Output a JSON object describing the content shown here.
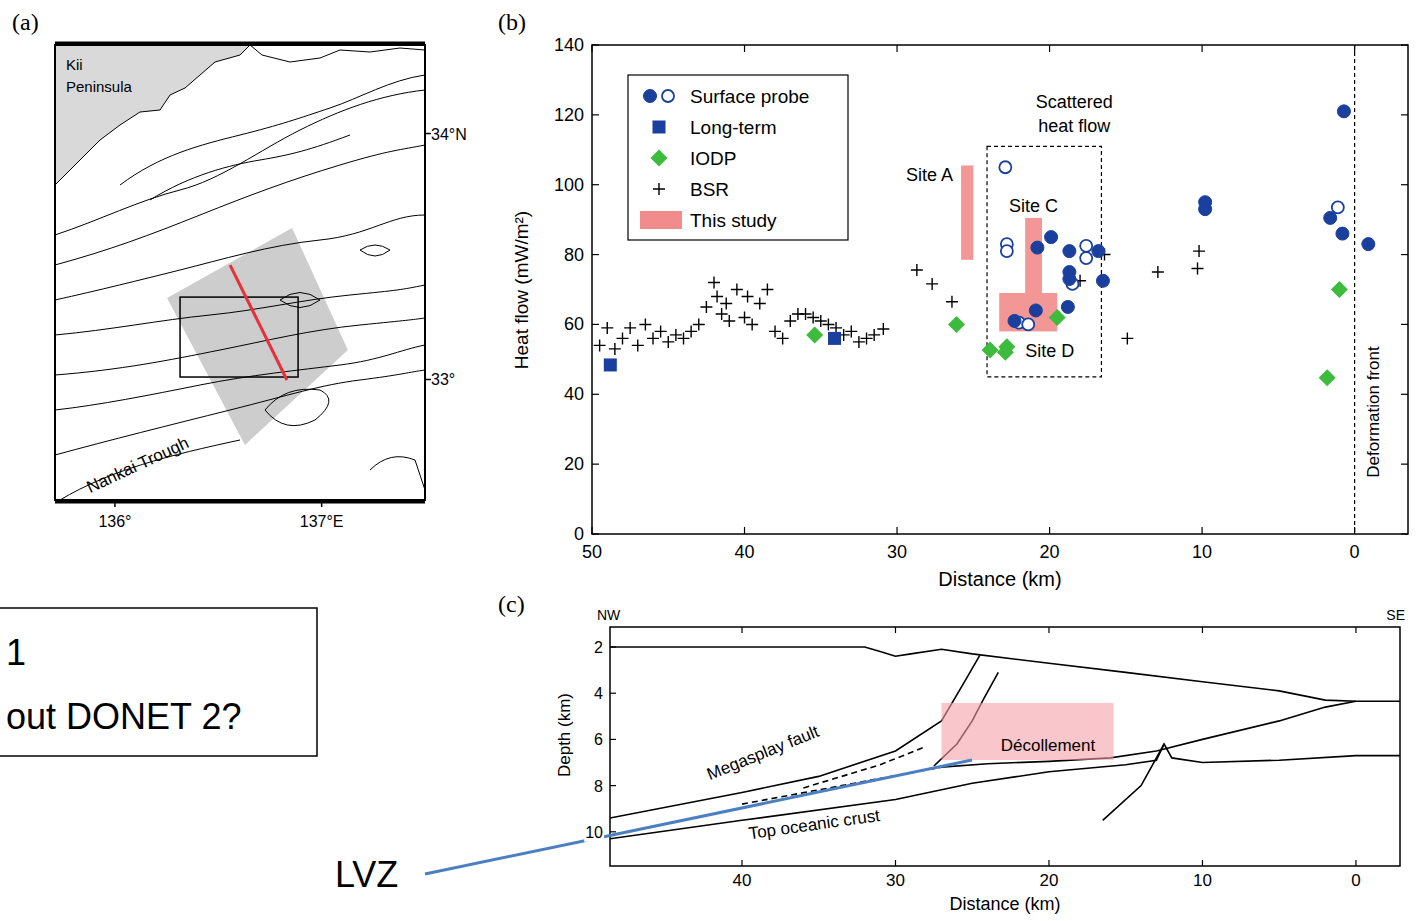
{
  "chart_data": [
    {
      "type": "map",
      "panel_label": "(a)",
      "xlim": [
        135.71,
        137.5
      ],
      "ylim": [
        32.51,
        34.36
      ],
      "xticks": [
        {
          "value": 136,
          "label": "136°"
        },
        {
          "value": 137,
          "label": "137°E"
        }
      ],
      "yticks": [
        {
          "value": 34,
          "label": "34°N"
        },
        {
          "value": 33,
          "label": "33°"
        }
      ],
      "place_labels": [
        "Kii Peninsula",
        "Nankai Trough"
      ],
      "study_area": {
        "x": [
          136.252,
          136.857,
          137.127,
          136.629
        ],
        "y": [
          33.331,
          33.616,
          33.12,
          32.734
        ],
        "color": "#c8c8c8"
      },
      "box": {
        "x": [
          136.315,
          136.886
        ],
        "y": [
          33.01,
          33.335
        ],
        "color": "#000000"
      },
      "profile": {
        "x": [
          136.557,
          136.832
        ],
        "y": [
          33.465,
          32.998
        ],
        "color": "#e8303a"
      }
    },
    {
      "type": "scatter",
      "panel_label": "(b)",
      "xlabel": "Distance (km)",
      "ylabel": "Heat flow (mW/m²)",
      "xlim": [
        50,
        -3.5
      ],
      "ylim": [
        0,
        140
      ],
      "xticks": [
        50,
        40,
        30,
        20,
        10,
        0
      ],
      "yticks": [
        0,
        20,
        40,
        60,
        80,
        100,
        120,
        140
      ],
      "legend": "upper left",
      "series": [
        {
          "name": "Surface probe",
          "marker": "circle",
          "color": "#1b3f9c",
          "x": [
            0.7,
            1.6,
            0.8,
            -0.9,
            9.8,
            9.8,
            16.5,
            16.8,
            18.7,
            18.7,
            18.7,
            18.8,
            19.9,
            20.8,
            20.9,
            22.3
          ],
          "values": [
            121,
            90.5,
            86,
            83,
            95,
            93,
            72.5,
            81,
            81,
            75,
            73,
            65,
            85,
            82,
            64,
            61
          ]
        },
        {
          "marker": "open_circle",
          "color": "#1b3f9c",
          "x": [
            1.1,
            22.9,
            22.8,
            22.8,
            17.6,
            17.6,
            18.5,
            22,
            21.4
          ],
          "values": [
            93.5,
            105,
            83,
            81,
            82.5,
            79,
            71.6,
            60.5,
            60
          ]
        },
        {
          "name": "Long-term",
          "marker": "square",
          "color": "#1b3f9c",
          "x": [
            48.8,
            34.1
          ],
          "values": [
            48.4,
            56
          ]
        },
        {
          "name": "IODP",
          "marker": "diamond",
          "color": "#3dbb3d",
          "x": [
            35.4,
            26.1,
            23.9,
            22.9,
            22.8,
            19.5,
            1,
            1.8
          ],
          "values": [
            57,
            60,
            52.7,
            52,
            53.6,
            62,
            70,
            44.7
          ]
        },
        {
          "name": "BSR",
          "marker": "plus",
          "color": "#000000",
          "x": [
            49.5,
            49,
            48.5,
            48,
            47.5,
            47,
            46.5,
            46,
            45.5,
            45,
            44.5,
            44,
            43.5,
            43,
            42.5,
            42,
            41.8,
            41.5,
            41.2,
            41,
            40.5,
            40,
            39.8,
            39.5,
            39,
            38.5,
            38,
            37.5,
            37,
            36.5,
            36,
            35.5,
            35,
            34.5,
            34,
            33.5,
            33,
            32.5,
            32,
            31.5,
            30.9,
            28.7,
            27.7,
            26.4,
            18,
            16.4,
            14.9,
            12.9,
            10.3,
            10.2
          ],
          "values": [
            54,
            59,
            53,
            56,
            59,
            54,
            60,
            56,
            58,
            55,
            57,
            56,
            58,
            60,
            65,
            72,
            68,
            63,
            66,
            61,
            70,
            62,
            68,
            60,
            66,
            70,
            58,
            56,
            61,
            63,
            63,
            62,
            61,
            60,
            59,
            57,
            58,
            55,
            56,
            57,
            58.7,
            75.6,
            71.6,
            66.5,
            72.5,
            80,
            56,
            75,
            76,
            81
          ]
        },
        {
          "name": "This study",
          "type": "rect",
          "color": "#f28b8b",
          "x_ranges": [
            [
              25.8,
              25.0
            ],
            [
              21.6,
              20.5
            ],
            [
              23.3,
              19.5
            ]
          ],
          "y_ranges": [
            [
              78.5,
              105.5
            ],
            [
              69,
              90.5
            ],
            [
              58,
              69
            ]
          ]
        }
      ],
      "site_labels": [
        "Site A",
        "Site C",
        "Site D"
      ],
      "annotations": [
        {
          "text": "Scattered heat flow",
          "x": [
            24.1,
            16.6
          ],
          "y": [
            45,
            111
          ],
          "line_style": "dashed"
        },
        {
          "text": "Deformation front",
          "x": 0,
          "line_style": "dashed"
        }
      ]
    },
    {
      "type": "line",
      "panel_label": "(c)",
      "xlabel": "Distance (km)",
      "ylabel": "Depth (km)",
      "xlim": [
        48.6,
        -2.87
      ],
      "ylim": [
        11.48,
        1.134
      ],
      "xticks": [
        40,
        30,
        20,
        10,
        0
      ],
      "yticks": [
        2,
        4,
        6,
        8,
        10
      ],
      "corner_labels": [
        "NW",
        "SE"
      ],
      "labels": [
        "Megasplay fault",
        "Décollement",
        "Top oceanic crust"
      ],
      "highlight": {
        "x": [
          27,
          15.8
        ],
        "y": [
          4.42,
          6.89
        ],
        "color": "#f5a0a8"
      },
      "series": [
        {
          "color": "#000000",
          "line_style": "solid",
          "x": [
            48.6,
            32,
            31,
            30,
            29,
            27,
            25,
            20,
            15,
            10,
            5,
            2,
            0,
            -2.87
          ],
          "values": [
            2.0,
            2.0,
            2.2,
            2.4,
            2.3,
            2.1,
            2.3,
            2.7,
            3.1,
            3.5,
            3.9,
            4.3,
            4.35,
            4.35
          ]
        },
        {
          "color": "#000000",
          "line_style": "solid",
          "x": [
            48.6,
            40,
            35,
            30,
            27,
            25.5,
            24.5
          ],
          "values": [
            9.4,
            8.3,
            7.6,
            6.5,
            5.2,
            3.5,
            2.35
          ]
        },
        {
          "color": "#000000",
          "line_style": "solid",
          "x": [
            27.5,
            26,
            25,
            24.3,
            23.3
          ],
          "values": [
            7.15,
            6.2,
            5.2,
            4.3,
            3.1
          ]
        },
        {
          "color": "#000000",
          "line_style": "dashed",
          "x": [
            36,
            31,
            28
          ],
          "values": [
            8.1,
            7.1,
            6.3
          ]
        },
        {
          "color": "#000000",
          "line_style": "dashed",
          "x": [
            40,
            27
          ],
          "values": [
            8.8,
            7.2
          ]
        },
        {
          "color": "#000000",
          "line_style": "solid",
          "x": [
            27,
            24,
            20,
            16,
            13,
            10,
            5,
            2,
            0
          ],
          "values": [
            7.2,
            7.05,
            6.95,
            6.8,
            6.5,
            6.0,
            5.2,
            4.6,
            4.35
          ]
        },
        {
          "color": "#000000",
          "line_style": "solid",
          "x": [
            48.6,
            40,
            30,
            25,
            20,
            15,
            13,
            12.5,
            12,
            10,
            5,
            0,
            -2.87
          ],
          "values": [
            10.3,
            9.5,
            8.6,
            7.9,
            7.4,
            7.1,
            6.9,
            6.2,
            6.8,
            7.0,
            6.9,
            6.7,
            6.7
          ]
        },
        {
          "color": "#000000",
          "line_style": "solid",
          "x": [
            16.5,
            14,
            12.5
          ],
          "values": [
            9.5,
            8.0,
            6.2
          ]
        }
      ]
    }
  ],
  "annotations": {
    "note": [
      "1",
      "out DONET 2?"
    ],
    "callout": {
      "text": "LVZ",
      "color": "#4a7fc1"
    }
  }
}
